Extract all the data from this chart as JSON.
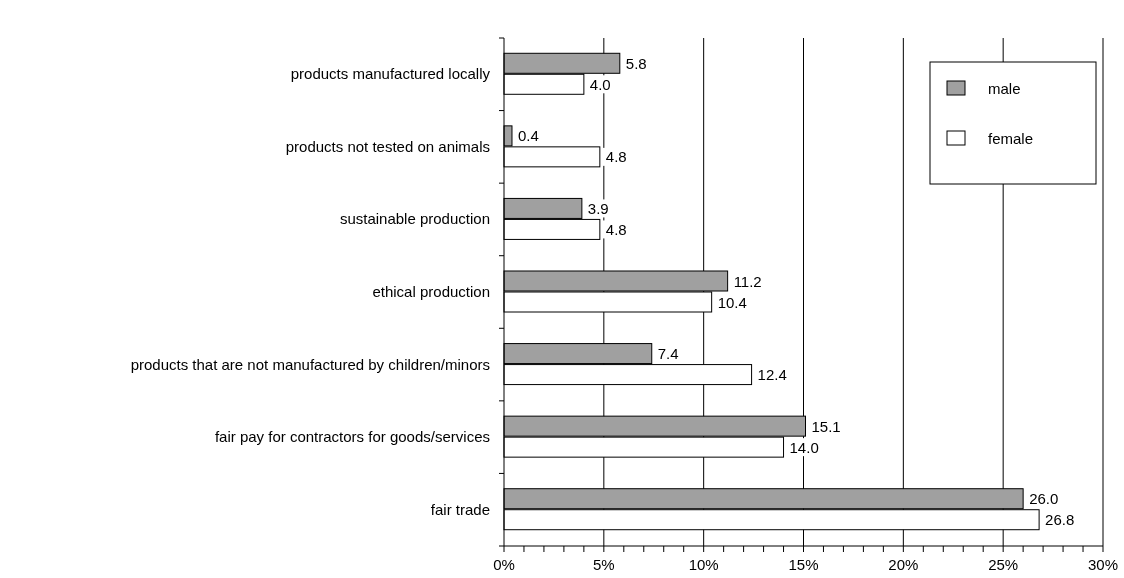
{
  "chart_data": {
    "type": "bar",
    "orientation": "horizontal",
    "categories": [
      "products manufactured locally",
      "products not tested on animals",
      "sustainable production",
      "ethical production",
      "products that are not manufactured by children/minors",
      "fair pay for contractors for goods/services",
      "fair trade"
    ],
    "series": [
      {
        "name": "male",
        "color": "#a0a0a0",
        "values": [
          5.8,
          0.4,
          3.9,
          11.2,
          7.4,
          15.1,
          26.0
        ],
        "value_labels": [
          "5.8",
          "0.4",
          "3.9",
          "11.2",
          "7.4",
          "15.1",
          "26.0"
        ]
      },
      {
        "name": "female",
        "color": "#ffffff",
        "values": [
          4.0,
          4.8,
          4.8,
          10.4,
          12.4,
          14.0,
          26.8
        ],
        "value_labels": [
          "4.0",
          "4.8",
          "4.8",
          "10.4",
          "12.4",
          "14.0",
          "26.8"
        ]
      }
    ],
    "xlim": [
      0,
      30
    ],
    "xticks": [
      {
        "value": 0,
        "label": "0%"
      },
      {
        "value": 1,
        "label": null
      },
      {
        "value": 2,
        "label": null
      },
      {
        "value": 3,
        "label": null
      },
      {
        "value": 4,
        "label": null
      },
      {
        "value": 5,
        "label": "5%"
      },
      {
        "value": 6,
        "label": null
      },
      {
        "value": 7,
        "label": null
      },
      {
        "value": 8,
        "label": null
      },
      {
        "value": 9,
        "label": null
      },
      {
        "value": 10,
        "label": "10%"
      },
      {
        "value": 11,
        "label": null
      },
      {
        "value": 12,
        "label": null
      },
      {
        "value": 13,
        "label": null
      },
      {
        "value": 14,
        "label": null
      },
      {
        "value": 15,
        "label": "15%"
      },
      {
        "value": 16,
        "label": null
      },
      {
        "value": 17,
        "label": null
      },
      {
        "value": 18,
        "label": null
      },
      {
        "value": 19,
        "label": null
      },
      {
        "value": 20,
        "label": "20%"
      },
      {
        "value": 21,
        "label": null
      },
      {
        "value": 22,
        "label": null
      },
      {
        "value": 23,
        "label": null
      },
      {
        "value": 24,
        "label": null
      },
      {
        "value": 25,
        "label": "25%"
      },
      {
        "value": 26,
        "label": null
      },
      {
        "value": 27,
        "label": null
      },
      {
        "value": 28,
        "label": null
      },
      {
        "value": 29,
        "label": null
      },
      {
        "value": 30,
        "label": "30%"
      }
    ],
    "grid": "x",
    "legend": "top right"
  }
}
